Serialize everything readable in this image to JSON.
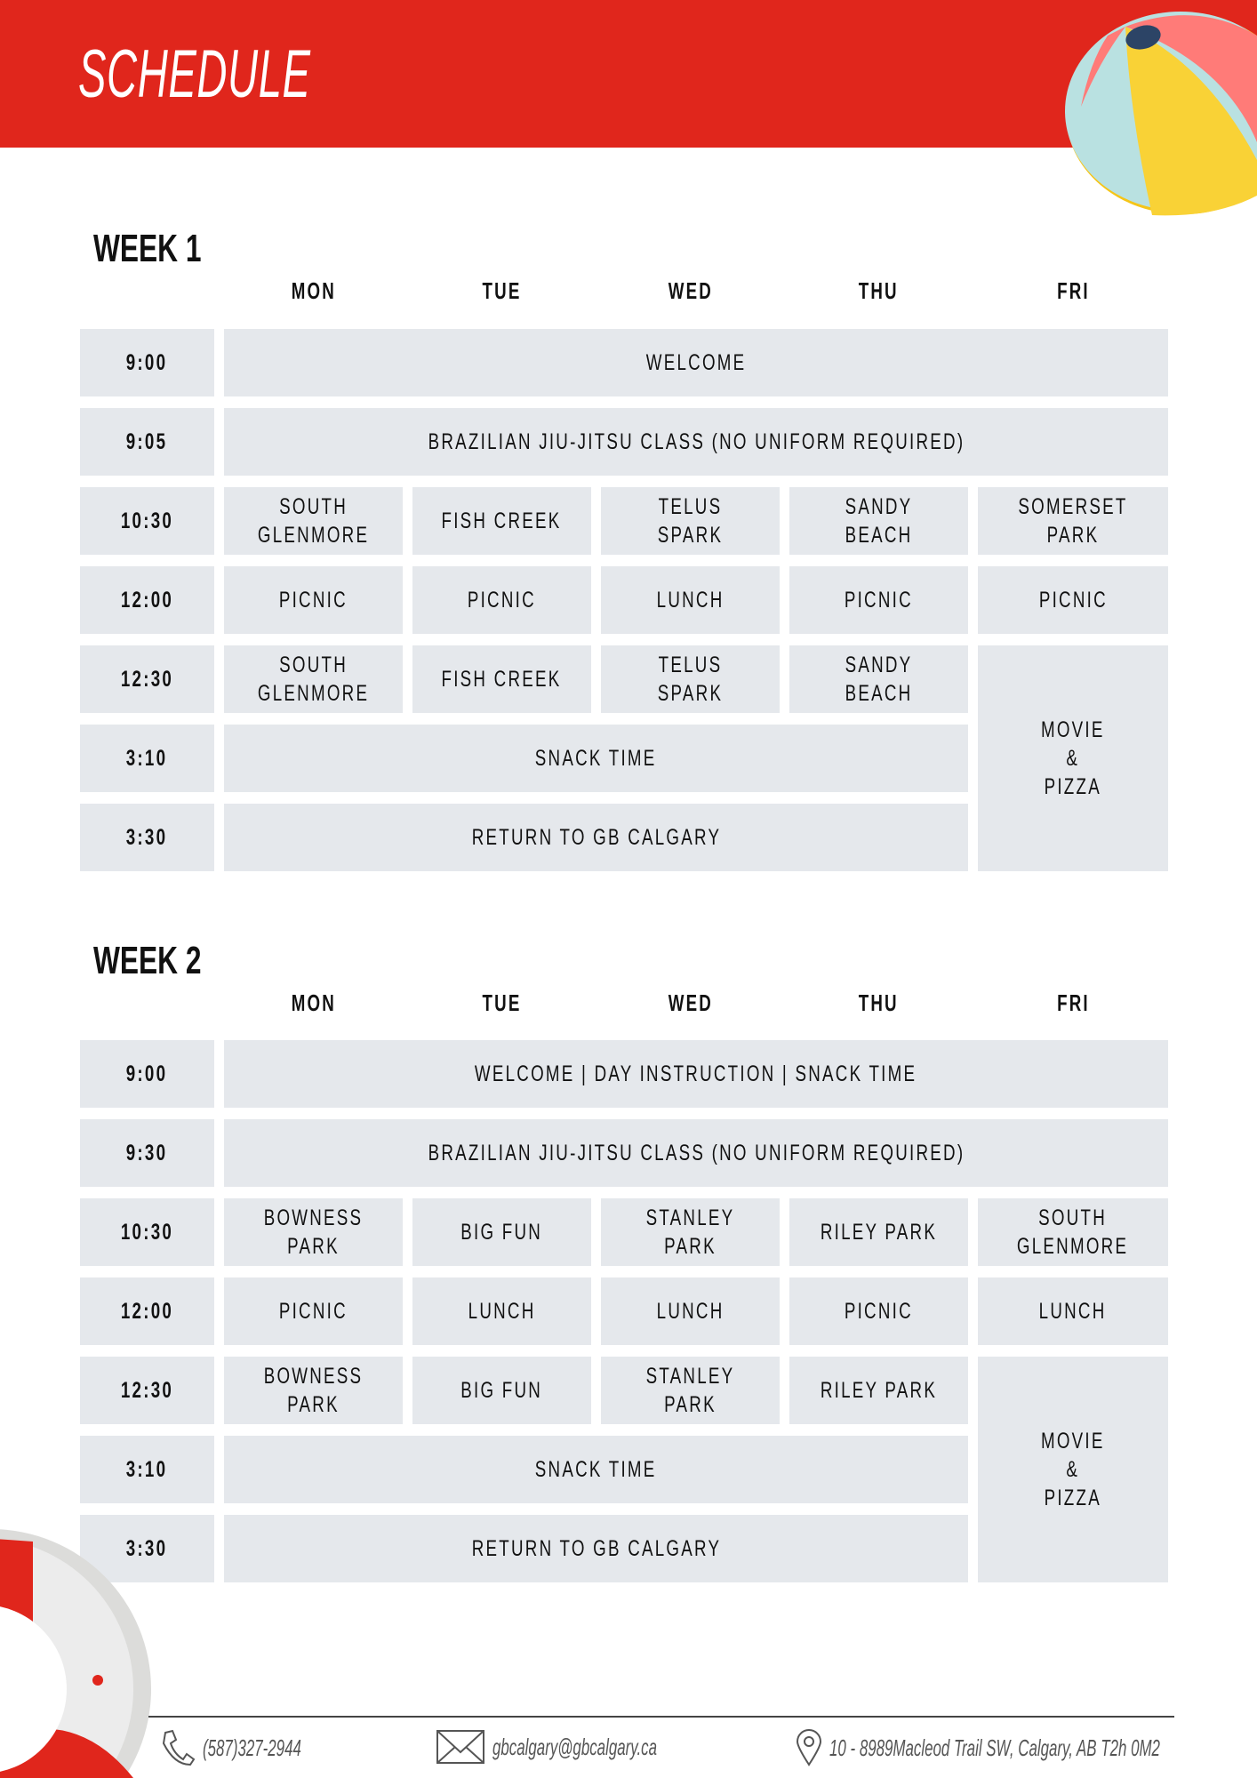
{
  "header": {
    "title": "SCHEDULE",
    "color": "#e0261c"
  },
  "days": [
    "MON",
    "TUE",
    "WED",
    "THU",
    "FRI"
  ],
  "weeks": [
    {
      "label": "WEEK 1",
      "rows": [
        {
          "time": "9:00",
          "all": "WELCOME"
        },
        {
          "time": "9:05",
          "all": "BRAZILIAN JIU-JITSU CLASS (NO UNIFORM REQUIRED)"
        },
        {
          "time": "10:30",
          "mon": "SOUTH\nGLENMORE",
          "tue": "FISH CREEK",
          "wed": "TELUS SPARK",
          "thu": "SANDY BEACH",
          "fri": "SOMERSET PARK"
        },
        {
          "time": "12:00",
          "mon": "PICNIC",
          "tue": "PICNIC",
          "wed": "LUNCH",
          "thu": "PICNIC",
          "fri": "PICNIC"
        },
        {
          "time": "12:30",
          "mon": "SOUTH\nGLENMORE",
          "tue": "FISH CREEK",
          "wed": "TELUS SPARK",
          "thu": "SANDY BEACH"
        },
        {
          "time": "3:10",
          "montothu": "SNACK TIME"
        },
        {
          "time": "3:30",
          "montothu": "RETURN TO GB CALGARY"
        }
      ],
      "fri_afternoon": "MOVIE\n&\nPIZZA"
    },
    {
      "label": "WEEK 2",
      "rows": [
        {
          "time": "9:00",
          "all": "WELCOME | DAY INSTRUCTION | SNACK TIME"
        },
        {
          "time": "9:30",
          "all": "BRAZILIAN JIU-JITSU CLASS (NO UNIFORM REQUIRED)"
        },
        {
          "time": "10:30",
          "mon": "BOWNESS PARK",
          "tue": "BIG FUN",
          "wed": "STANLEY PARK",
          "thu": "RILEY PARK",
          "fri": "SOUTH\nGLENMORE"
        },
        {
          "time": "12:00",
          "mon": "PICNIC",
          "tue": "LUNCH",
          "wed": "LUNCH",
          "thu": "PICNIC",
          "fri": "LUNCH"
        },
        {
          "time": "12:30",
          "mon": "BOWNESS PARK",
          "tue": "BIG FUN",
          "wed": "STANLEY PARK",
          "thu": "RILEY PARK"
        },
        {
          "time": "3:10",
          "montothu": "SNACK TIME"
        },
        {
          "time": "3:30",
          "montothu": "RETURN TO GB CALGARY"
        }
      ],
      "fri_afternoon": "MOVIE\n&\nPIZZA"
    }
  ],
  "footer": {
    "phone": "(587)327-2944",
    "email": "gbcalgary@gbcalgary.ca",
    "address": "10 - 8989Macleod Trail SW, Calgary, AB T2h 0M2",
    "icons": [
      "phone-icon",
      "envelope-icon",
      "location-pin-icon"
    ]
  }
}
